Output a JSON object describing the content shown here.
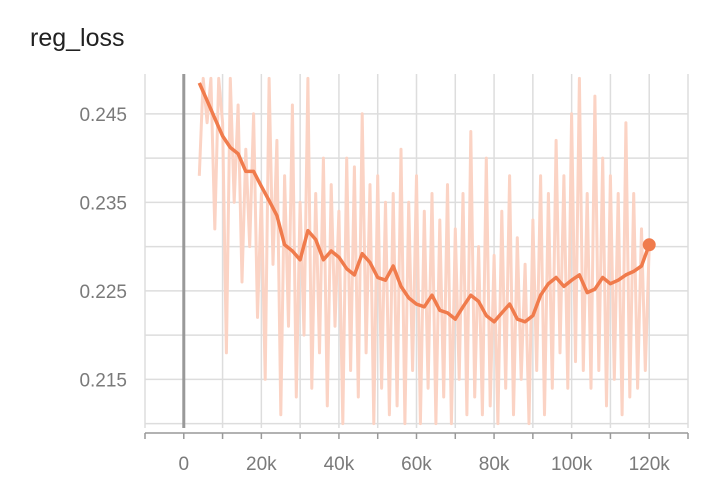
{
  "chart_data": {
    "type": "line",
    "title": "reg_loss",
    "xlabel": "",
    "ylabel": "",
    "xlim": [
      -10000,
      130000
    ],
    "ylim": [
      0.2095,
      0.2495
    ],
    "grid": true,
    "x_ticks": [
      0,
      20000,
      40000,
      60000,
      80000,
      100000,
      120000
    ],
    "x_tick_labels": [
      "0",
      "20k",
      "40k",
      "60k",
      "80k",
      "100k",
      "120k"
    ],
    "y_ticks": [
      0.215,
      0.225,
      0.235,
      0.245
    ],
    "y_tick_labels": [
      "0.215",
      "0.225",
      "0.235",
      "0.245"
    ],
    "colors": {
      "smoothed": "#f07b4c",
      "raw": "#fbd3c4",
      "grid": "#dddddd",
      "tick_text": "#7a7a7a",
      "title": "#212121",
      "zero_line": "#999999"
    },
    "series": [
      {
        "x": [
          4000,
          6000,
          8000,
          10000,
          12000,
          14000,
          16000,
          18000,
          20000,
          22000,
          24000,
          26000,
          28000,
          30000,
          32000,
          34000,
          36000,
          38000,
          40000,
          42000,
          44000,
          46000,
          48000,
          50000,
          52000,
          54000,
          56000,
          58000,
          60000,
          62000,
          64000,
          66000,
          68000,
          70000,
          72000,
          74000,
          76000,
          78000,
          80000,
          82000,
          84000,
          86000,
          88000,
          90000,
          92000,
          94000,
          96000,
          98000,
          100000,
          102000,
          104000,
          106000,
          108000,
          110000,
          112000,
          114000,
          116000,
          118000,
          120000
        ],
        "y": [
          0.2485,
          0.2465,
          0.2445,
          0.2425,
          0.2412,
          0.2405,
          0.2385,
          0.2385,
          0.2368,
          0.2352,
          0.2335,
          0.2302,
          0.2295,
          0.2285,
          0.2318,
          0.2308,
          0.2285,
          0.2295,
          0.2288,
          0.2275,
          0.2268,
          0.2292,
          0.2282,
          0.2265,
          0.2262,
          0.2278,
          0.2255,
          0.2242,
          0.2235,
          0.2232,
          0.2245,
          0.2228,
          0.2225,
          0.2218,
          0.2232,
          0.2245,
          0.2238,
          0.2222,
          0.2215,
          0.2225,
          0.2235,
          0.2218,
          0.2215,
          0.2222,
          0.2245,
          0.2258,
          0.2265,
          0.2255,
          0.2262,
          0.2268,
          0.2248,
          0.2252,
          0.2265,
          0.2258,
          0.2262,
          0.2268,
          0.2272,
          0.2278,
          0.2302
        ]
      },
      {
        "x": [
          4000,
          5000,
          6000,
          7000,
          8000,
          9000,
          10000,
          11000,
          12000,
          13000,
          14000,
          15000,
          16000,
          17000,
          18000,
          19000,
          20000,
          21000,
          22000,
          23000,
          24000,
          25000,
          26000,
          27000,
          28000,
          29000,
          30000,
          31000,
          32000,
          33000,
          34000,
          35000,
          36000,
          37000,
          38000,
          39000,
          40000,
          41000,
          42000,
          43000,
          44000,
          45000,
          46000,
          47000,
          48000,
          49000,
          50000,
          51000,
          52000,
          53000,
          54000,
          55000,
          56000,
          57000,
          58000,
          59000,
          60000,
          61000,
          62000,
          63000,
          64000,
          65000,
          66000,
          67000,
          68000,
          69000,
          70000,
          71000,
          72000,
          73000,
          74000,
          75000,
          76000,
          77000,
          78000,
          79000,
          80000,
          81000,
          82000,
          83000,
          84000,
          85000,
          86000,
          87000,
          88000,
          89000,
          90000,
          91000,
          92000,
          93000,
          94000,
          95000,
          96000,
          97000,
          98000,
          99000,
          100000,
          101000,
          102000,
          103000,
          104000,
          105000,
          106000,
          107000,
          108000,
          109000,
          110000,
          111000,
          112000,
          113000,
          114000,
          115000,
          116000,
          117000,
          118000,
          119000,
          120000
        ],
        "y": [
          0.238,
          0.249,
          0.244,
          0.249,
          0.232,
          0.249,
          0.244,
          0.218,
          0.249,
          0.235,
          0.246,
          0.226,
          0.241,
          0.23,
          0.245,
          0.222,
          0.236,
          0.215,
          0.249,
          0.228,
          0.242,
          0.211,
          0.238,
          0.221,
          0.246,
          0.213,
          0.235,
          0.22,
          0.249,
          0.214,
          0.236,
          0.218,
          0.24,
          0.212,
          0.237,
          0.221,
          0.234,
          0.21,
          0.24,
          0.216,
          0.239,
          0.213,
          0.245,
          0.218,
          0.237,
          0.21,
          0.238,
          0.214,
          0.235,
          0.211,
          0.236,
          0.212,
          0.241,
          0.21,
          0.235,
          0.216,
          0.238,
          0.21,
          0.234,
          0.214,
          0.236,
          0.21,
          0.233,
          0.213,
          0.237,
          0.21,
          0.232,
          0.215,
          0.236,
          0.211,
          0.243,
          0.213,
          0.23,
          0.211,
          0.24,
          0.212,
          0.229,
          0.21,
          0.234,
          0.214,
          0.238,
          0.211,
          0.231,
          0.215,
          0.228,
          0.21,
          0.233,
          0.216,
          0.238,
          0.211,
          0.236,
          0.214,
          0.242,
          0.218,
          0.238,
          0.214,
          0.245,
          0.217,
          0.249,
          0.216,
          0.236,
          0.214,
          0.247,
          0.216,
          0.24,
          0.212,
          0.238,
          0.215,
          0.236,
          0.211,
          0.244,
          0.213,
          0.236,
          0.214,
          0.232,
          0.216,
          0.23
        ]
      }
    ]
  }
}
